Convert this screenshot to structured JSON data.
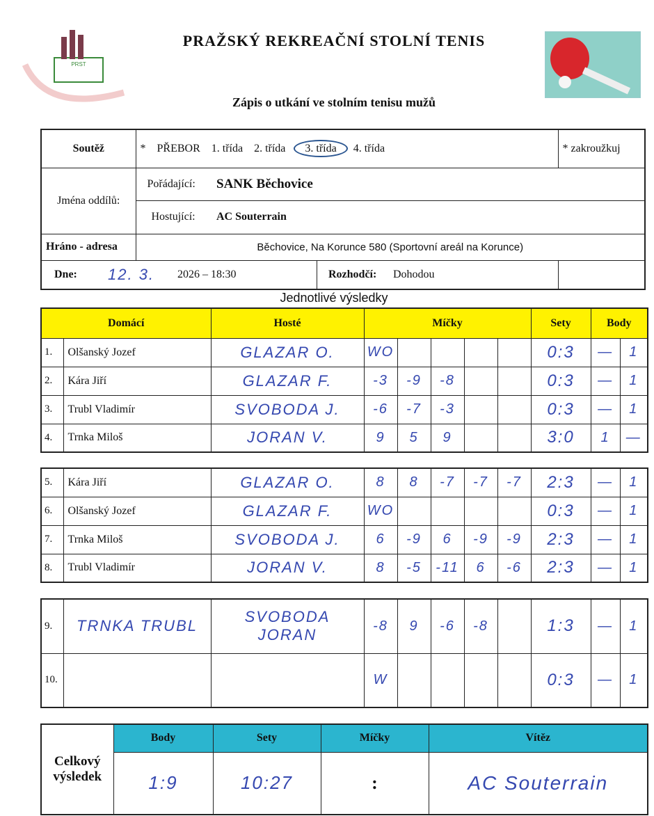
{
  "header": {
    "title": "PRAŽSKÝ REKREAČNÍ STOLNÍ TENIS",
    "subtitle": "Zápis o utkání ve stolním tenisu mužů",
    "logo_text": "PRAŽSKÝ REKREAČNÍ STOLNÍ TENIS",
    "logo_abbr": "PRST"
  },
  "info": {
    "soutez_label": "Soutěž",
    "star": "*",
    "classes": [
      "PŘEBOR",
      "1. třída",
      "2. třída",
      "3. třída",
      "4. třída"
    ],
    "selected_class": "3. třída",
    "note": "* zakroužkuj",
    "teams_label": "Jména oddílů:",
    "home_label": "Pořádající:",
    "home": "SANK Běchovice",
    "away_label": "Hostující:",
    "away": "AC Souterrain",
    "address_label": "Hráno - adresa",
    "address": "Běchovice, Na Korunce 580 (Sportovní areál na Korunce)",
    "date_label": "Dne:",
    "date_hand": "12. 3.",
    "date_print": "2026 – 18:30",
    "referee_label": "Rozhodčí:",
    "referee": "Dohodou"
  },
  "results_title": "Jednotlivé výsledky",
  "columns": {
    "home": "Domácí",
    "away": "Hosté",
    "balls": "Míčky",
    "sets": "Sety",
    "points": "Body"
  },
  "matches": [
    {
      "no": "1.",
      "home": "Olšanský Jozef",
      "away": "GLAZAR O.",
      "balls": [
        "WO",
        "",
        "",
        "",
        ""
      ],
      "sets": "0:3",
      "p_home": "—",
      "p_away": "1"
    },
    {
      "no": "2.",
      "home": "Kára Jiří",
      "away": "GLAZAR F.",
      "balls": [
        "-3",
        "-9",
        "-8",
        "",
        ""
      ],
      "sets": "0:3",
      "p_home": "—",
      "p_away": "1"
    },
    {
      "no": "3.",
      "home": "Trubl Vladimír",
      "away": "SVOBODA J.",
      "balls": [
        "-6",
        "-7",
        "-3",
        "",
        ""
      ],
      "sets": "0:3",
      "p_home": "—",
      "p_away": "1"
    },
    {
      "no": "4.",
      "home": "Trnka Miloš",
      "away": "JORAN V.",
      "balls": [
        "9",
        "5",
        "9",
        "",
        ""
      ],
      "sets": "3:0",
      "p_home": "1",
      "p_away": "—"
    },
    {
      "no": "5.",
      "home": "Kára Jiří",
      "away": "GLAZAR O.",
      "balls": [
        "8",
        "8",
        "-7",
        "-7",
        "-7"
      ],
      "sets": "2:3",
      "p_home": "—",
      "p_away": "1"
    },
    {
      "no": "6.",
      "home": "Olšanský Jozef",
      "away": "GLAZAR F.",
      "balls": [
        "WO",
        "",
        "",
        "",
        ""
      ],
      "sets": "0:3",
      "p_home": "—",
      "p_away": "1"
    },
    {
      "no": "7.",
      "home": "Trnka Miloš",
      "away": "SVOBODA J.",
      "balls": [
        "6",
        "-9",
        "6",
        "-9",
        "-9"
      ],
      "sets": "2:3",
      "p_home": "—",
      "p_away": "1"
    },
    {
      "no": "8.",
      "home": "Trubl Vladimír",
      "away": "JORAN V.",
      "balls": [
        "8",
        "-5",
        "-11",
        "6",
        "-6"
      ],
      "sets": "2:3",
      "p_home": "—",
      "p_away": "1"
    },
    {
      "no": "9.",
      "home": "TRNKA TRUBL",
      "away": "SVOBODA JORAN",
      "balls": [
        "-8",
        "9",
        "-6",
        "-8",
        ""
      ],
      "sets": "1:3",
      "p_home": "—",
      "p_away": "1"
    },
    {
      "no": "10.",
      "home": "",
      "away": "",
      "balls": [
        "W",
        "",
        "",
        "",
        ""
      ],
      "sets": "0:3",
      "p_home": "—",
      "p_away": "1"
    }
  ],
  "summary": {
    "label": "Celkový výsledek",
    "cols": [
      "Body",
      "Sety",
      "Míčky",
      "Vítěz"
    ],
    "points": "1:9",
    "sets": "10:27",
    "balls": ":",
    "winner": "AC Souterrain"
  },
  "colors": {
    "yellow": "#fff200",
    "teal": "#2bb5cf",
    "ink": "#3548b0"
  }
}
